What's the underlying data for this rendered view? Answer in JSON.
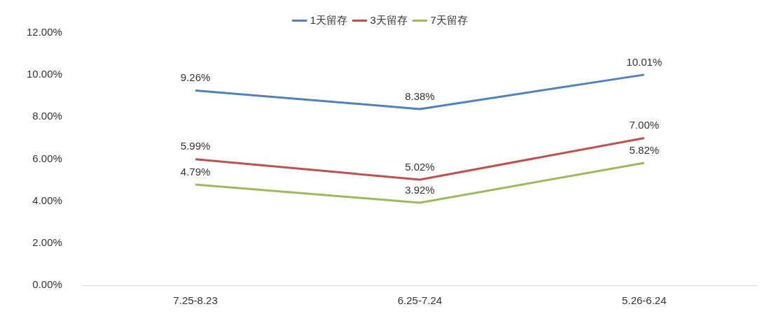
{
  "chart_data": {
    "type": "line",
    "categories": [
      "7.25-8.23",
      "6.25-7.24",
      "5.26-6.24"
    ],
    "series": [
      {
        "name": "1天留存",
        "color": "#4f81bd",
        "values": [
          9.26,
          8.38,
          10.01
        ],
        "value_labels": [
          "9.26%",
          "8.38%",
          "10.01%"
        ]
      },
      {
        "name": "3天留存",
        "color": "#c0504d",
        "values": [
          5.99,
          5.02,
          7.0
        ],
        "value_labels": [
          "5.99%",
          "5.02%",
          "7.00%"
        ]
      },
      {
        "name": "7天留存",
        "color": "#9bbb59",
        "values": [
          4.79,
          3.92,
          5.82
        ],
        "value_labels": [
          "4.79%",
          "3.92%",
          "5.82%"
        ]
      }
    ],
    "ylim": [
      0,
      12
    ],
    "yticks": [
      {
        "value": 0,
        "label": "0.00%"
      },
      {
        "value": 2,
        "label": "2.00%"
      },
      {
        "value": 4,
        "label": "4.00%"
      },
      {
        "value": 6,
        "label": "6.00%"
      },
      {
        "value": 8,
        "label": "8.00%"
      },
      {
        "value": 10,
        "label": "10.00%"
      },
      {
        "value": 12,
        "label": "12.00%"
      }
    ],
    "grid": false,
    "legend": "top",
    "marker": "none",
    "line_style": "solid"
  }
}
